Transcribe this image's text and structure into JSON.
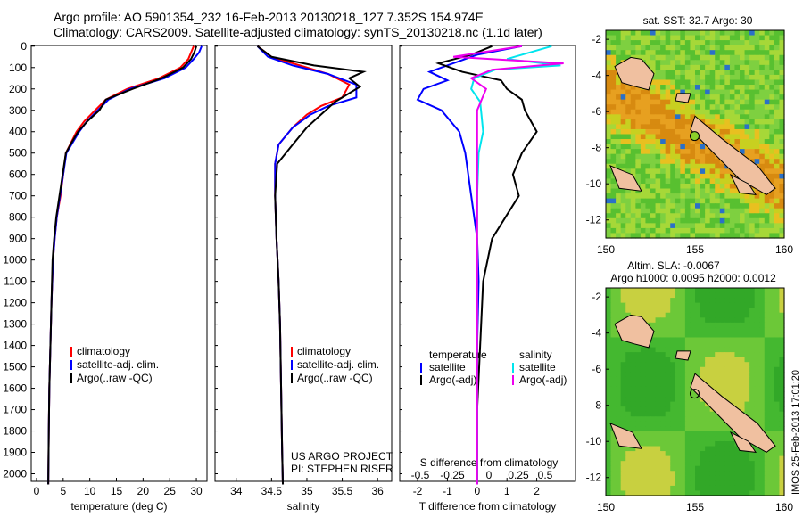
{
  "header": {
    "line1": "Argo profile: AO 5901354_232 16-Feb-2013 20130218_127 7.352S 154.974E",
    "line2": "Climatology: CARS2009. Satellite-adjusted climatology: synTS_20130218.nc (1.1d later)"
  },
  "footer_stamp": "IMOS 25-Feb-2013 17:01:20",
  "colors": {
    "climatology": "#ff0000",
    "satellite": "#0000ff",
    "argo": "#000000",
    "sat_salinity": "#00e5ee",
    "argo_salinity": "#ee00ee",
    "land": "#f0c0a0"
  },
  "chart_data": [
    {
      "type": "line",
      "xlabel": "temperature (deg C)",
      "ylabel": "",
      "xlim": [
        -1,
        32
      ],
      "ylim": [
        2060,
        0
      ],
      "xticks": [
        "0",
        "5",
        "10",
        "15",
        "20",
        "25",
        "30"
      ],
      "yticks": [
        "0",
        "100",
        "200",
        "300",
        "400",
        "500",
        "600",
        "700",
        "800",
        "900",
        "1000",
        "1100",
        "1200",
        "1300",
        "1400",
        "1500",
        "1600",
        "1700",
        "1800",
        "1900",
        "2000"
      ],
      "legend": [
        "climatology",
        "satellite-adj. clim.",
        "Argo(..raw -QC)"
      ],
      "series": [
        {
          "name": "climatology",
          "color": "#ff0000",
          "x": [
            29.5,
            29,
            28.5,
            27,
            23,
            17,
            13,
            11,
            9,
            7.5,
            6.5,
            5.5,
            5,
            4.5,
            3.8,
            3.4,
            3.1,
            2.8,
            2.6,
            2.4,
            2.3,
            2.2
          ],
          "y": [
            0,
            30,
            60,
            100,
            150,
            200,
            250,
            300,
            350,
            400,
            450,
            500,
            600,
            700,
            800,
            900,
            1000,
            1200,
            1400,
            1600,
            1800,
            2050
          ]
        },
        {
          "name": "satellite-adj. clim.",
          "color": "#0000ff",
          "x": [
            31,
            30.5,
            29.5,
            28,
            24,
            17.5,
            13.5,
            11.5,
            9.5,
            8,
            6.8,
            5.6,
            5,
            4.4,
            3.8,
            3.4,
            3.1,
            2.8,
            2.6,
            2.4,
            2.3,
            2.2
          ],
          "y": [
            0,
            30,
            60,
            100,
            150,
            200,
            250,
            300,
            350,
            400,
            450,
            500,
            600,
            700,
            800,
            900,
            1000,
            1200,
            1400,
            1600,
            1800,
            2050
          ]
        },
        {
          "name": "Argo(..raw -QC)",
          "color": "#000000",
          "x": [
            30,
            29.6,
            29,
            27.5,
            23.5,
            18,
            13,
            11.8,
            9.6,
            7.8,
            6.6,
            5.5,
            4.9,
            4.3,
            3.7,
            3.3,
            3.0,
            2.8,
            2.6,
            2.4,
            2.3,
            2.2
          ],
          "y": [
            0,
            30,
            60,
            100,
            150,
            200,
            250,
            300,
            350,
            400,
            450,
            500,
            600,
            700,
            800,
            900,
            1000,
            1200,
            1400,
            1600,
            1800,
            2050
          ]
        }
      ]
    },
    {
      "type": "line",
      "xlabel": "salinity",
      "xlim": [
        33.7,
        36.2
      ],
      "ylim": [
        2060,
        0
      ],
      "xticks": [
        "34",
        "34.5",
        "35",
        "35.5",
        "36"
      ],
      "legend": [
        "climatology",
        "satellite-adj. clim.",
        "Argo(..raw -QC)"
      ],
      "annotation": [
        "US ARGO PROJECT",
        "PI: STEPHEN RISER"
      ],
      "series": [
        {
          "name": "climatology",
          "color": "#ff0000",
          "x": [
            34.3,
            34.5,
            34.9,
            35.3,
            35.6,
            35.5,
            35.2,
            35.0,
            34.8,
            34.6,
            34.55,
            34.55,
            34.57,
            34.6,
            34.62,
            34.63,
            34.64,
            34.65,
            34.66
          ],
          "y": [
            0,
            50,
            90,
            130,
            180,
            240,
            280,
            320,
            380,
            460,
            550,
            700,
            900,
            1100,
            1300,
            1500,
            1700,
            1900,
            2050
          ]
        },
        {
          "name": "satellite-adj. clim.",
          "color": "#0000ff",
          "x": [
            34.3,
            34.45,
            34.8,
            35.3,
            35.7,
            35.7,
            35.3,
            35.05,
            34.8,
            34.6,
            34.55,
            34.55,
            34.57,
            34.6,
            34.62,
            34.63,
            34.64,
            34.65,
            34.66
          ],
          "y": [
            0,
            50,
            90,
            130,
            180,
            240,
            280,
            320,
            380,
            460,
            550,
            700,
            900,
            1100,
            1300,
            1500,
            1700,
            1900,
            2050
          ]
        },
        {
          "name": "Argo(..raw -QC)",
          "color": "#000000",
          "x": [
            34.3,
            34.5,
            35.1,
            35.8,
            35.6,
            35.75,
            35.4,
            35.2,
            35.0,
            34.8,
            34.58,
            34.55,
            34.57,
            34.6,
            34.62,
            34.63,
            34.64,
            34.65,
            34.66
          ],
          "y": [
            0,
            50,
            90,
            120,
            150,
            190,
            260,
            320,
            380,
            460,
            550,
            700,
            900,
            1100,
            1300,
            1500,
            1700,
            1900,
            2050
          ]
        }
      ]
    },
    {
      "type": "line",
      "xlabel": "T difference from climatology",
      "x2label": "S difference from climatology",
      "xlim": [
        -2.6,
        3.3
      ],
      "ylim": [
        2060,
        0
      ],
      "xticks": [
        "-2",
        "-1",
        "0",
        "1",
        "2"
      ],
      "x2ticks": [
        "-0.5",
        "-0.25",
        "0",
        "0.25",
        "0.5"
      ],
      "legend_t": [
        "temperature",
        "satellite",
        "Argo(-adj)"
      ],
      "legend_s": [
        "salinity",
        "satellite",
        "Argo(-adj)"
      ],
      "series": [
        {
          "name": "satellite",
          "color": "#0000ff",
          "x": [
            1.5,
            0,
            -0.8,
            -1.6,
            -1.0,
            -1.8,
            -2.0,
            -1.2,
            -0.6,
            -0.4,
            -0.3,
            -0.2,
            0,
            0.05,
            0,
            0,
            0
          ],
          "y": [
            0,
            40,
            80,
            120,
            160,
            200,
            250,
            300,
            400,
            500,
            600,
            700,
            900,
            1100,
            1400,
            1700,
            2050
          ]
        },
        {
          "name": "Argo(-adj)",
          "color": "#000000",
          "x": [
            0.5,
            -0.2,
            -1.3,
            -0.5,
            0.8,
            1.0,
            1.5,
            1.6,
            2.0,
            1.5,
            1.2,
            1.4,
            0.5,
            0.2,
            0.1,
            0,
            0
          ],
          "y": [
            0,
            40,
            80,
            120,
            160,
            200,
            250,
            300,
            400,
            500,
            600,
            700,
            900,
            1100,
            1400,
            1700,
            2050
          ]
        },
        {
          "name": "satellite",
          "color": "#00e5ee",
          "x": [
            2.5,
            1.0,
            2.8,
            0.6,
            -0.1,
            -0.2,
            0.1,
            0.2,
            0.05,
            0,
            0,
            0,
            0,
            0,
            0,
            0
          ],
          "y": [
            0,
            60,
            90,
            110,
            150,
            200,
            260,
            400,
            500,
            700,
            900,
            1100,
            1400,
            1600,
            1800,
            2050
          ]
        },
        {
          "name": "Argo(-adj)",
          "color": "#ee00ee",
          "x": [
            1.5,
            -0.8,
            2.9,
            0.5,
            -0.2,
            0.3,
            0,
            0,
            0,
            0,
            0
          ],
          "y": [
            0,
            50,
            80,
            110,
            150,
            200,
            300,
            500,
            900,
            1400,
            2050
          ]
        }
      ]
    },
    {
      "type": "heatmap",
      "title": "sat. SST: 32.7 Argo: 30",
      "xlim": [
        150,
        160
      ],
      "ylim": [
        -13,
        -1.5
      ],
      "xticks": [
        "150",
        "155",
        "160"
      ],
      "yticks": [
        "-2",
        "-4",
        "-6",
        "-8",
        "-10",
        "-12"
      ],
      "marker": [
        154.974,
        -7.352
      ]
    },
    {
      "type": "heatmap",
      "title": "Altim. SLA: -0.0067",
      "subtitle": "Argo h1000: 0.0095 h2000: 0.0012",
      "xlim": [
        150,
        160
      ],
      "ylim": [
        -13,
        -1.5
      ],
      "xticks": [
        "150",
        "155",
        "160"
      ],
      "yticks": [
        "-2",
        "-4",
        "-6",
        "-8",
        "-10",
        "-12"
      ],
      "marker": [
        154.974,
        -7.352
      ]
    }
  ]
}
